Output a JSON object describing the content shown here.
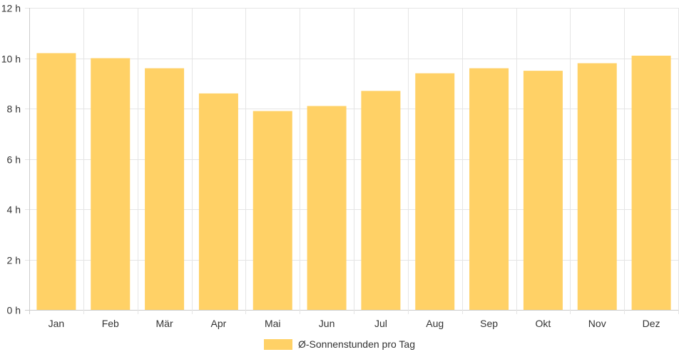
{
  "chart_data": {
    "type": "bar",
    "categories": [
      "Jan",
      "Feb",
      "Mär",
      "Apr",
      "Mai",
      "Jun",
      "Jul",
      "Aug",
      "Sep",
      "Okt",
      "Nov",
      "Dez"
    ],
    "series": [
      {
        "name": "Ø-Sonnenstunden pro Tag",
        "values": [
          10.2,
          10.0,
          9.6,
          8.6,
          7.9,
          8.1,
          8.7,
          9.4,
          9.6,
          9.5,
          9.8,
          10.1
        ]
      }
    ],
    "y_ticks": [
      "0 h",
      "2 h",
      "4 h",
      "6 h",
      "8 h",
      "10 h",
      "12 h"
    ],
    "ylim": [
      0,
      12
    ],
    "grid": true,
    "legend_position": "bottom",
    "colors": {
      "bar": "#ffd166",
      "grid": "#e5e5e5",
      "axis": "#cccccc",
      "text": "#333333"
    }
  }
}
